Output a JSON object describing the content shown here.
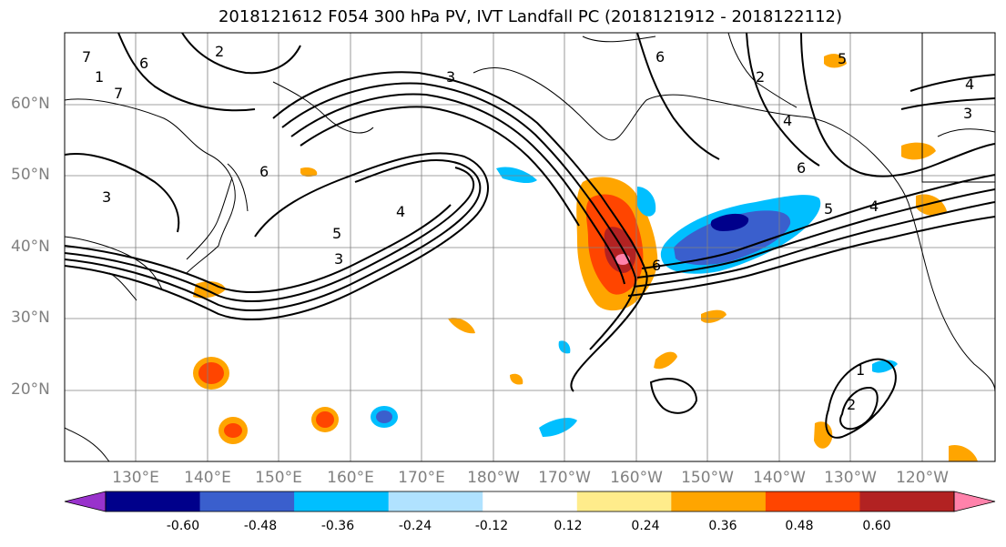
{
  "title": "2018121612 F054 300 hPa PV, IVT Landfall PC (2018121912 - 2018122112)",
  "lat_labels": [
    "60°N",
    "50°N",
    "40°N",
    "30°N",
    "20°N"
  ],
  "lon_labels": [
    "130°E",
    "140°E",
    "150°E",
    "160°E",
    "170°E",
    "180°W",
    "170°W",
    "160°W",
    "150°W",
    "140°W",
    "130°W",
    "120°W"
  ],
  "colorbar": {
    "colors": [
      "#9932cc",
      "#00008b",
      "#3a5fcd",
      "#00bfff",
      "#b0e2ff",
      "#ffffff",
      "#ffec8b",
      "#ffa500",
      "#ff4500",
      "#b22222",
      "#ff82ab"
    ],
    "tick_labels": [
      "-0.60",
      "-0.48",
      "-0.36",
      "-0.24",
      "-0.12",
      "0.12",
      "0.24",
      "0.36",
      "0.48",
      "0.60"
    ]
  },
  "contour_labels": [
    "2",
    "3",
    "3",
    "3",
    "3",
    "4",
    "4",
    "4",
    "4",
    "5",
    "5",
    "5",
    "6",
    "6",
    "6",
    "6",
    "6",
    "7",
    "7",
    "1",
    "1",
    "2",
    "2"
  ]
}
